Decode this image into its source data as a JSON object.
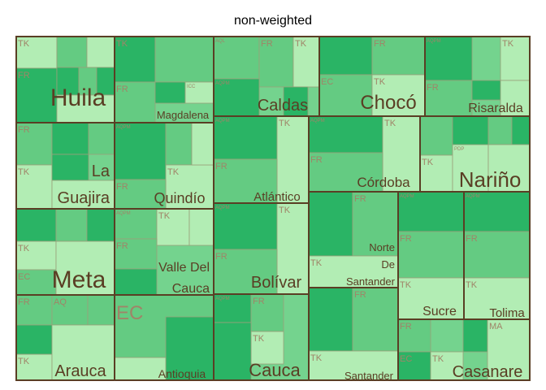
{
  "chart_data": {
    "type": "treemap",
    "title": "non-weighted",
    "colors": {
      "light": "#b2edb4",
      "mid": "#64cb82",
      "mid2": "#74d38e",
      "dark": "#2ab465",
      "dark2": "#3bbd6e",
      "region_border": "#5a3e24",
      "cell_border": "#9aa07a",
      "region_label": "#5a3e24",
      "cell_label": "#a08468"
    },
    "regions": [
      {
        "name": "Huila",
        "cells": [
          {
            "label": "TK",
            "shade": "light"
          },
          {
            "label": "FR",
            "shade": "dark"
          },
          {
            "label": "",
            "shade": "mid"
          },
          {
            "label": "",
            "shade": "light"
          },
          {
            "label": "",
            "shade": "dark"
          },
          {
            "label": "",
            "shade": "mid"
          },
          {
            "label": "",
            "shade": "dark"
          },
          {
            "label": "",
            "shade": "light"
          }
        ]
      },
      {
        "name": "Magdalena",
        "cells": [
          {
            "label": "TK",
            "shade": "dark"
          },
          {
            "label": "",
            "shade": "mid"
          },
          {
            "label": "FR",
            "shade": "mid"
          },
          {
            "label": "",
            "shade": "dark"
          },
          {
            "label": "ICC",
            "shade": "light"
          }
        ]
      },
      {
        "name": "Caldas",
        "cells": [
          {
            "label": "AQL",
            "shade": "mid"
          },
          {
            "label": "FR",
            "shade": "mid"
          },
          {
            "label": "TK",
            "shade": "light"
          },
          {
            "label": "AQPM",
            "shade": "dark"
          },
          {
            "label": "",
            "shade": "dark"
          }
        ]
      },
      {
        "name": "Chocó",
        "cells": [
          {
            "label": "",
            "shade": "dark"
          },
          {
            "label": "FR",
            "shade": "mid"
          },
          {
            "label": "EC",
            "shade": "mid"
          },
          {
            "label": "TK",
            "shade": "light"
          }
        ]
      },
      {
        "name": "Risaralda",
        "cells": [
          {
            "label": "AQPM",
            "shade": "dark"
          },
          {
            "label": "TK",
            "shade": "light"
          },
          {
            "label": "FR",
            "shade": "mid"
          },
          {
            "label": "",
            "shade": "dark"
          },
          {
            "label": "",
            "shade": "light"
          }
        ]
      },
      {
        "name": "La Guajira",
        "cells": [
          {
            "label": "FR",
            "shade": "mid"
          },
          {
            "label": "",
            "shade": "dark"
          },
          {
            "label": "",
            "shade": "mid"
          },
          {
            "label": "TK",
            "shade": "light"
          },
          {
            "label": "",
            "shade": "dark"
          },
          {
            "label": "",
            "shade": "light"
          }
        ]
      },
      {
        "name": "Quindío",
        "cells": [
          {
            "label": "AQPM",
            "shade": "dark"
          },
          {
            "label": "",
            "shade": "mid"
          },
          {
            "label": "TK",
            "shade": "light"
          },
          {
            "label": "FR",
            "shade": "mid"
          },
          {
            "label": "",
            "shade": "light"
          }
        ]
      },
      {
        "name": "Atlántico",
        "cells": [
          {
            "label": "AQPM",
            "shade": "dark"
          },
          {
            "label": "TK",
            "shade": "light"
          },
          {
            "label": "FR",
            "shade": "mid"
          }
        ]
      },
      {
        "name": "Córdoba",
        "cells": [
          {
            "label": "AQPM",
            "shade": "dark"
          },
          {
            "label": "TK",
            "shade": "light"
          },
          {
            "label": "FR",
            "shade": "mid"
          }
        ]
      },
      {
        "name": "Nariño",
        "cells": [
          {
            "label": "",
            "shade": "mid"
          },
          {
            "label": "TK",
            "shade": "light"
          },
          {
            "label": "PDP",
            "shade": "light"
          },
          {
            "label": "",
            "shade": "dark"
          },
          {
            "label": "",
            "shade": "mid"
          },
          {
            "label": "",
            "shade": "dark"
          },
          {
            "label": "",
            "shade": "light"
          }
        ]
      },
      {
        "name": "Meta",
        "cells": [
          {
            "label": "",
            "shade": "dark"
          },
          {
            "label": "TK",
            "shade": "light"
          },
          {
            "label": "EC",
            "shade": "mid"
          },
          {
            "label": "",
            "shade": "mid"
          },
          {
            "label": "",
            "shade": "dark"
          },
          {
            "label": "",
            "shade": "light"
          }
        ]
      },
      {
        "name": "Valle Del Cauca",
        "cells": [
          {
            "label": "AQPM",
            "shade": "mid"
          },
          {
            "label": "TK",
            "shade": "light"
          },
          {
            "label": "FR",
            "shade": "mid"
          },
          {
            "label": "",
            "shade": "dark"
          },
          {
            "label": "",
            "shade": "light"
          }
        ]
      },
      {
        "name": "Bolívar",
        "cells": [
          {
            "label": "AQPM",
            "shade": "dark"
          },
          {
            "label": "TK",
            "shade": "light"
          },
          {
            "label": "FR",
            "shade": "mid"
          }
        ]
      },
      {
        "name": "Norte De Santander",
        "cells": [
          {
            "label": "",
            "shade": "dark"
          },
          {
            "label": "FR",
            "shade": "mid"
          },
          {
            "label": "TK",
            "shade": "light"
          }
        ]
      },
      {
        "name": "Sucre",
        "cells": [
          {
            "label": "AQPM",
            "shade": "dark"
          },
          {
            "label": "FR",
            "shade": "mid"
          },
          {
            "label": "TK",
            "shade": "light"
          }
        ]
      },
      {
        "name": "Tolima",
        "cells": [
          {
            "label": "AQPM",
            "shade": "dark"
          },
          {
            "label": "FR",
            "shade": "mid"
          },
          {
            "label": "TK",
            "shade": "light"
          }
        ]
      },
      {
        "name": "Arauca",
        "cells": [
          {
            "label": "FR",
            "shade": "mid"
          },
          {
            "label": "AQ",
            "shade": "mid"
          },
          {
            "label": "TK",
            "shade": "light"
          },
          {
            "label": "",
            "shade": "dark"
          },
          {
            "label": "",
            "shade": "mid"
          },
          {
            "label": "",
            "shade": "light"
          }
        ]
      },
      {
        "name": "Antioquia",
        "cells": [
          {
            "label": "EC",
            "shade": "mid"
          },
          {
            "label": "",
            "shade": "dark"
          },
          {
            "label": "",
            "shade": "light"
          }
        ]
      },
      {
        "name": "Cauca",
        "cells": [
          {
            "label": "AQPM",
            "shade": "dark"
          },
          {
            "label": "FR",
            "shade": "mid"
          },
          {
            "label": "TK",
            "shade": "light"
          },
          {
            "label": "",
            "shade": "dark"
          }
        ]
      },
      {
        "name": "Santander",
        "cells": [
          {
            "label": "",
            "shade": "dark"
          },
          {
            "label": "FR",
            "shade": "mid"
          },
          {
            "label": "TK",
            "shade": "light"
          }
        ]
      },
      {
        "name": "Casanare",
        "cells": [
          {
            "label": "FR",
            "shade": "mid"
          },
          {
            "label": "EC",
            "shade": "dark"
          },
          {
            "label": "TK",
            "shade": "light"
          },
          {
            "label": "",
            "shade": "dark"
          },
          {
            "label": "MA",
            "shade": "light"
          }
        ]
      }
    ]
  }
}
